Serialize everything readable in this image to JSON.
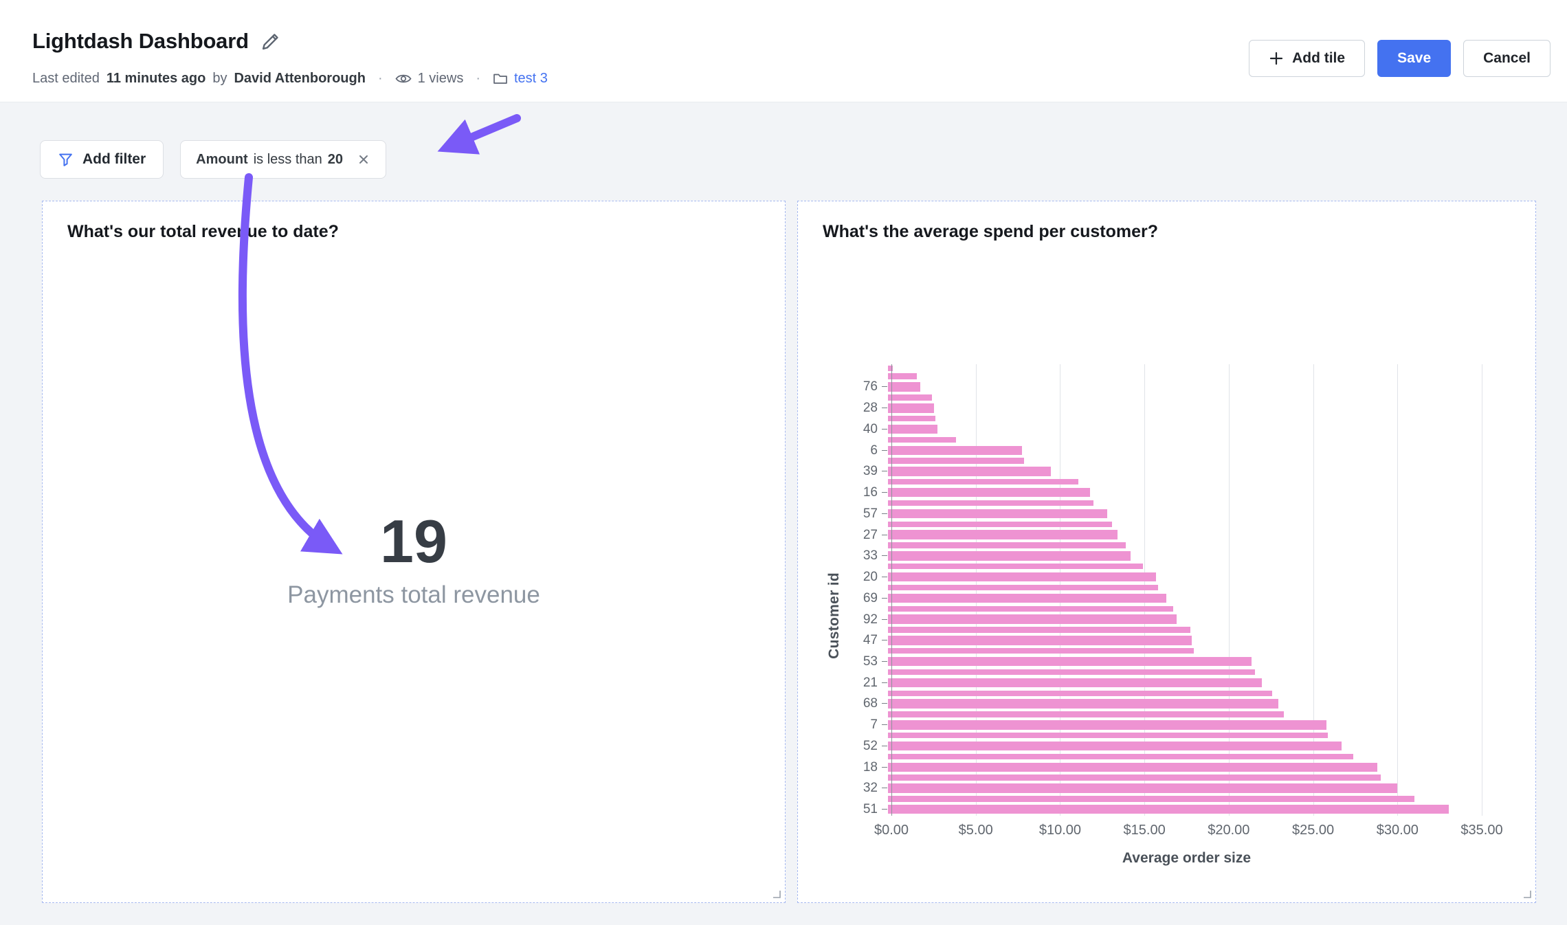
{
  "header": {
    "title": "Lightdash Dashboard",
    "meta": {
      "last_edited_prefix": "Last edited",
      "last_edited_time": "11 minutes ago",
      "by": "by",
      "author": "David Attenborough",
      "separator": "·",
      "views": "1 views",
      "space": "test 3"
    },
    "actions": {
      "add_tile": "Add tile",
      "save": "Save",
      "cancel": "Cancel"
    }
  },
  "filters": {
    "add_filter_label": "Add filter",
    "active_filter": {
      "field": "Amount",
      "operator": "is less than",
      "value": "20"
    }
  },
  "tiles": {
    "revenue": {
      "title": "What's our total revenue to date?",
      "value": "19",
      "label": "Payments total revenue"
    },
    "spend": {
      "title": "What's the average spend per customer?"
    }
  },
  "chart_data": {
    "type": "bar",
    "orientation": "horizontal",
    "title": "What's the average spend per customer?",
    "xlabel": "Average order size",
    "ylabel": "Customer id",
    "xlim": [
      0,
      35
    ],
    "x_ticks": [
      "$0.00",
      "$5.00",
      "$10.00",
      "$15.00",
      "$20.00",
      "$25.00",
      "$30.00",
      "$35.00"
    ],
    "grid": true,
    "legend": false,
    "bars": [
      {
        "label": "",
        "value": 0.3
      },
      {
        "label": "",
        "value": 1.7
      },
      {
        "label": "76",
        "value": 1.9
      },
      {
        "label": "",
        "value": 2.6
      },
      {
        "label": "28",
        "value": 2.7
      },
      {
        "label": "",
        "value": 2.8
      },
      {
        "label": "40",
        "value": 2.9
      },
      {
        "label": "",
        "value": 4.0
      },
      {
        "label": "6",
        "value": 7.9
      },
      {
        "label": "",
        "value": 8.0
      },
      {
        "label": "39",
        "value": 9.6
      },
      {
        "label": "",
        "value": 11.2
      },
      {
        "label": "16",
        "value": 11.9
      },
      {
        "label": "",
        "value": 12.1
      },
      {
        "label": "57",
        "value": 12.9
      },
      {
        "label": "",
        "value": 13.2
      },
      {
        "label": "27",
        "value": 13.5
      },
      {
        "label": "",
        "value": 14.0
      },
      {
        "label": "33",
        "value": 14.3
      },
      {
        "label": "",
        "value": 15.0
      },
      {
        "label": "20",
        "value": 15.8
      },
      {
        "label": "",
        "value": 15.9
      },
      {
        "label": "69",
        "value": 16.4
      },
      {
        "label": "",
        "value": 16.8
      },
      {
        "label": "92",
        "value": 17.0
      },
      {
        "label": "",
        "value": 17.8
      },
      {
        "label": "47",
        "value": 17.9
      },
      {
        "label": "",
        "value": 18.0
      },
      {
        "label": "53",
        "value": 21.4
      },
      {
        "label": "",
        "value": 21.6
      },
      {
        "label": "21",
        "value": 22.0
      },
      {
        "label": "",
        "value": 22.6
      },
      {
        "label": "68",
        "value": 23.0
      },
      {
        "label": "",
        "value": 23.3
      },
      {
        "label": "7",
        "value": 25.8
      },
      {
        "label": "",
        "value": 25.9
      },
      {
        "label": "52",
        "value": 26.7
      },
      {
        "label": "",
        "value": 27.4
      },
      {
        "label": "18",
        "value": 28.8
      },
      {
        "label": "",
        "value": 29.0
      },
      {
        "label": "32",
        "value": 30.0
      },
      {
        "label": "",
        "value": 31.0
      },
      {
        "label": "51",
        "value": 33.0
      }
    ]
  },
  "colors": {
    "accent_blue": "#4472f0",
    "arrow_purple": "#7a5af7",
    "bar_pink": "#ee93d2",
    "tile_border": "#a6b9f0",
    "background": "#f2f4f7"
  }
}
